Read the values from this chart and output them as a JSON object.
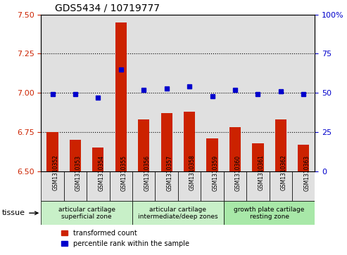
{
  "title": "GDS5434 / 10719777",
  "samples": [
    "GSM1310352",
    "GSM1310353",
    "GSM1310354",
    "GSM1310355",
    "GSM1310356",
    "GSM1310357",
    "GSM1310358",
    "GSM1310359",
    "GSM1310360",
    "GSM1310361",
    "GSM1310362",
    "GSM1310363"
  ],
  "bar_values": [
    6.75,
    6.7,
    6.65,
    7.45,
    6.83,
    6.87,
    6.88,
    6.71,
    6.78,
    6.68,
    6.83,
    6.67
  ],
  "percentile_values": [
    49,
    49,
    47,
    65,
    52,
    53,
    54,
    48,
    52,
    49,
    51,
    49
  ],
  "bar_color": "#CC2200",
  "dot_color": "#0000CC",
  "ylim_left": [
    6.5,
    7.5
  ],
  "ylim_right": [
    0,
    100
  ],
  "yticks_left": [
    6.5,
    6.75,
    7.0,
    7.25,
    7.5
  ],
  "yticks_right": [
    0,
    25,
    50,
    75,
    100
  ],
  "hlines": [
    6.75,
    7.0,
    7.25
  ],
  "tissue_groups": [
    {
      "label": "articular cartilage\nsuperficial zone",
      "start": 0,
      "end": 4,
      "color": "#ccffcc"
    },
    {
      "label": "articular cartilage\nintermediate/deep zones",
      "start": 4,
      "end": 8,
      "color": "#aaffaa"
    },
    {
      "label": "growth plate cartilage\nresting zone",
      "start": 8,
      "end": 12,
      "color": "#88ff88"
    }
  ],
  "tissue_label": "tissue",
  "legend_bar_label": "transformed count",
  "legend_dot_label": "percentile rank within the sample",
  "bar_width": 0.5,
  "bg_color": "#e0e0e0"
}
